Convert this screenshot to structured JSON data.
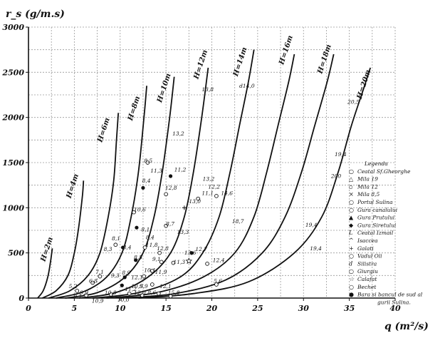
{
  "chart_data": {
    "type": "line",
    "ylabel": "r_s (g/m.s)",
    "xlabel": "q (m²/s)",
    "xlim": [
      0,
      40
    ],
    "ylim": [
      0,
      3000
    ],
    "x_ticks": [
      "0",
      "5",
      "10",
      "15",
      "20",
      "25",
      "30",
      "35",
      "40"
    ],
    "y_ticks": [
      "0",
      "500",
      "1000",
      "1500",
      "2000",
      "2500",
      "3000"
    ],
    "grid": true,
    "series": [
      {
        "name": "H=2m",
        "label_at": [
          1.8,
          400
        ],
        "points": [
          [
            1.0,
            0
          ],
          [
            1.6,
            80
          ],
          [
            2.1,
            230
          ],
          [
            2.4,
            400
          ],
          [
            2.6,
            550
          ]
        ]
      },
      {
        "name": "H=4m",
        "label_at": [
          4.6,
          1100
        ],
        "points": [
          [
            1.5,
            0
          ],
          [
            3.0,
            80
          ],
          [
            4.3,
            250
          ],
          [
            5.0,
            500
          ],
          [
            5.5,
            800
          ],
          [
            5.9,
            1150
          ],
          [
            6.0,
            1300
          ]
        ]
      },
      {
        "name": "H=6m",
        "label_at": [
          8.0,
          1720
        ],
        "points": [
          [
            2.2,
            0
          ],
          [
            4.5,
            80
          ],
          [
            6.5,
            250
          ],
          [
            7.8,
            500
          ],
          [
            8.7,
            900
          ],
          [
            9.3,
            1300
          ],
          [
            9.6,
            1750
          ],
          [
            9.8,
            2050
          ]
        ]
      },
      {
        "name": "H=8m",
        "label_at": [
          11.3,
          1960
        ],
        "points": [
          [
            3.0,
            0
          ],
          [
            6.0,
            70
          ],
          [
            8.5,
            230
          ],
          [
            10.2,
            500
          ],
          [
            11.2,
            900
          ],
          [
            12.0,
            1400
          ],
          [
            12.6,
            2000
          ],
          [
            12.9,
            2350
          ]
        ]
      },
      {
        "name": "H=10m",
        "label_at": [
          14.5,
          2160
        ],
        "points": [
          [
            4.0,
            0
          ],
          [
            7.5,
            60
          ],
          [
            10.5,
            230
          ],
          [
            12.5,
            500
          ],
          [
            13.7,
            900
          ],
          [
            14.6,
            1400
          ],
          [
            15.4,
            2000
          ],
          [
            15.9,
            2450
          ]
        ]
      },
      {
        "name": "H=12m",
        "label_at": [
          18.5,
          2420
        ],
        "points": [
          [
            5.5,
            0
          ],
          [
            9.5,
            60
          ],
          [
            13.0,
            230
          ],
          [
            15.5,
            500
          ],
          [
            17.0,
            900
          ],
          [
            18.0,
            1400
          ],
          [
            18.9,
            2000
          ],
          [
            19.6,
            2550
          ]
        ]
      },
      {
        "name": "H=14m",
        "label_at": [
          22.8,
          2450
        ],
        "points": [
          [
            7.0,
            0
          ],
          [
            12.0,
            60
          ],
          [
            16.5,
            230
          ],
          [
            19.0,
            500
          ],
          [
            20.8,
            900
          ],
          [
            22.0,
            1400
          ],
          [
            23.0,
            1900
          ],
          [
            24.0,
            2400
          ],
          [
            24.6,
            2750
          ]
        ]
      },
      {
        "name": "H=16m",
        "label_at": [
          27.8,
          2580
        ],
        "points": [
          [
            8.5,
            0
          ],
          [
            14.0,
            60
          ],
          [
            19.0,
            230
          ],
          [
            22.5,
            500
          ],
          [
            24.6,
            900
          ],
          [
            26.0,
            1400
          ],
          [
            27.2,
            1900
          ],
          [
            28.4,
            2400
          ],
          [
            29.0,
            2700
          ]
        ]
      },
      {
        "name": "H=18m",
        "label_at": [
          32.0,
          2480
        ],
        "points": [
          [
            10.0,
            0
          ],
          [
            16.0,
            50
          ],
          [
            21.5,
            200
          ],
          [
            25.5,
            500
          ],
          [
            28.0,
            900
          ],
          [
            29.8,
            1400
          ],
          [
            31.2,
            1900
          ],
          [
            32.6,
            2400
          ],
          [
            33.3,
            2700
          ]
        ]
      },
      {
        "name": "H=20m",
        "label_at": [
          36.3,
          2200
        ],
        "points": [
          [
            12.0,
            0
          ],
          [
            18.0,
            50
          ],
          [
            24.0,
            180
          ],
          [
            29.0,
            500
          ],
          [
            32.0,
            900
          ],
          [
            33.8,
            1400
          ],
          [
            35.2,
            1900
          ],
          [
            36.5,
            2300
          ],
          [
            37.3,
            2550
          ]
        ]
      }
    ],
    "annotations": [
      {
        "text": "13,8",
        "at": [
          18.9,
          2290
        ]
      },
      {
        "text": "d14,0",
        "at": [
          23.0,
          2330
        ]
      },
      {
        "text": "20,5",
        "at": [
          34.8,
          2150
        ]
      },
      {
        "text": "13,2",
        "at": [
          15.7,
          1800
        ]
      },
      {
        "text": "8,5",
        "at": [
          12.6,
          1500
        ]
      },
      {
        "text": "11,3",
        "at": [
          13.3,
          1390
        ]
      },
      {
        "text": "11,2",
        "at": [
          15.9,
          1400
        ]
      },
      {
        "text": "8,4",
        "at": [
          12.4,
          1280
        ]
      },
      {
        "text": "12,8",
        "at": [
          14.9,
          1200
        ]
      },
      {
        "text": "13,2",
        "at": [
          19.0,
          1300
        ]
      },
      {
        "text": "12,2",
        "at": [
          19.6,
          1210
        ]
      },
      {
        "text": "14,6",
        "at": [
          21.0,
          1140
        ]
      },
      {
        "text": "11,1",
        "at": [
          18.9,
          1140
        ]
      },
      {
        "text": "13,0",
        "at": [
          17.5,
          1050
        ]
      },
      {
        "text": "10,6",
        "at": [
          11.5,
          960
        ]
      },
      {
        "text": "8,7",
        "at": [
          15.0,
          800
        ]
      },
      {
        "text": "18,7",
        "at": [
          22.2,
          830
        ]
      },
      {
        "text": "19,4",
        "at": [
          30.2,
          790
        ]
      },
      {
        "text": "19,4",
        "at": [
          33.4,
          1570
        ]
      },
      {
        "text": "200",
        "at": [
          33.0,
          1330
        ]
      },
      {
        "text": "19,4",
        "at": [
          30.7,
          530
        ]
      },
      {
        "text": "8,1",
        "at": [
          9.1,
          640
        ]
      },
      {
        "text": "8,1",
        "at": [
          12.3,
          740
        ]
      },
      {
        "text": "8,4",
        "at": [
          12.8,
          650
        ]
      },
      {
        "text": "13,3",
        "at": [
          16.2,
          710
        ]
      },
      {
        "text": "11,8",
        "at": [
          12.8,
          570
        ]
      },
      {
        "text": "8,3",
        "at": [
          8.2,
          520
        ]
      },
      {
        "text": "8,4",
        "at": [
          10.3,
          540
        ]
      },
      {
        "text": "12,8",
        "at": [
          14.0,
          530
        ]
      },
      {
        "text": "12,7",
        "at": [
          18.2,
          520
        ]
      },
      {
        "text": "13,6",
        "at": [
          17.0,
          480
        ]
      },
      {
        "text": "8,5",
        "at": [
          11.5,
          430
        ]
      },
      {
        "text": "12,4",
        "at": [
          20.1,
          400
        ]
      },
      {
        "text": "9,1",
        "at": [
          13.5,
          410
        ]
      },
      {
        "text": "11,3",
        "at": [
          15.8,
          380
        ]
      },
      {
        "text": "10,1",
        "at": [
          12.6,
          290
        ]
      },
      {
        "text": "7,1",
        "at": [
          7.3,
          270
        ]
      },
      {
        "text": "9,3",
        "at": [
          9.0,
          230
        ]
      },
      {
        "text": "8,9",
        "at": [
          10.2,
          260
        ]
      },
      {
        "text": "12,1",
        "at": [
          11.2,
          210
        ]
      },
      {
        "text": "11,9",
        "at": [
          13.8,
          270
        ]
      },
      {
        "text": "6,8",
        "at": [
          6.6,
          170
        ]
      },
      {
        "text": "5,6",
        "at": [
          20.2,
          170
        ]
      },
      {
        "text": "5,2",
        "at": [
          4.4,
          110
        ]
      },
      {
        "text": "11,2",
        "at": [
          10.5,
          80
        ]
      },
      {
        "text": "9,9",
        "at": [
          12.1,
          110
        ]
      },
      {
        "text": "10,5",
        "at": [
          11.2,
          110
        ]
      },
      {
        "text": "12,1",
        "at": [
          14.3,
          110
        ]
      },
      {
        "text": "9,9",
        "at": [
          5.6,
          40
        ]
      },
      {
        "text": "9,1",
        "at": [
          4.9,
          0
        ]
      },
      {
        "text": "10,9",
        "at": [
          6.9,
          -50
        ]
      },
      {
        "text": "10,8",
        "at": [
          8.3,
          40
        ]
      },
      {
        "text": "10,0",
        "at": [
          9.7,
          -40
        ]
      },
      {
        "text": "12,0",
        "at": [
          11.5,
          40
        ]
      },
      {
        "text": "8,6",
        "at": [
          13.0,
          40
        ]
      },
      {
        "text": "15,8",
        "at": [
          15.2,
          40
        ]
      }
    ],
    "points": [
      {
        "x": 15.5,
        "y": 1350,
        "marker": "filled"
      },
      {
        "x": 12.5,
        "y": 1220,
        "marker": "filled"
      },
      {
        "x": 13.0,
        "y": 1500,
        "marker": "open"
      },
      {
        "x": 15.0,
        "y": 1150,
        "marker": "open"
      },
      {
        "x": 11.5,
        "y": 950,
        "marker": "open"
      },
      {
        "x": 17.0,
        "y": 1000,
        "marker": "plus"
      },
      {
        "x": 18.5,
        "y": 1100,
        "marker": "open"
      },
      {
        "x": 20.5,
        "y": 1130,
        "marker": "open"
      },
      {
        "x": 11.8,
        "y": 780,
        "marker": "filled"
      },
      {
        "x": 15.0,
        "y": 800,
        "marker": "open"
      },
      {
        "x": 9.5,
        "y": 590,
        "marker": "open"
      },
      {
        "x": 10.3,
        "y": 560,
        "marker": "filled"
      },
      {
        "x": 12.7,
        "y": 560,
        "marker": "open"
      },
      {
        "x": 14.3,
        "y": 500,
        "marker": "open"
      },
      {
        "x": 17.8,
        "y": 500,
        "marker": "filled"
      },
      {
        "x": 14.5,
        "y": 400,
        "marker": "open"
      },
      {
        "x": 11.7,
        "y": 420,
        "marker": "filled"
      },
      {
        "x": 15.8,
        "y": 390,
        "marker": "open"
      },
      {
        "x": 17.5,
        "y": 410,
        "marker": "star"
      },
      {
        "x": 19.5,
        "y": 380,
        "marker": "open"
      },
      {
        "x": 13.5,
        "y": 300,
        "marker": "open"
      },
      {
        "x": 7.8,
        "y": 240,
        "marker": "open"
      },
      {
        "x": 10.5,
        "y": 230,
        "marker": "filled"
      },
      {
        "x": 12.6,
        "y": 240,
        "marker": "open"
      },
      {
        "x": 7.0,
        "y": 170,
        "marker": "open"
      },
      {
        "x": 10.2,
        "y": 140,
        "marker": "filled"
      },
      {
        "x": 13.5,
        "y": 150,
        "marker": "open"
      },
      {
        "x": 20.5,
        "y": 150,
        "marker": "open"
      },
      {
        "x": 5.3,
        "y": 80,
        "marker": "open"
      },
      {
        "x": 6.3,
        "y": 30,
        "marker": "open"
      },
      {
        "x": 9.0,
        "y": 40,
        "marker": "open"
      },
      {
        "x": 11.0,
        "y": 50,
        "marker": "open"
      },
      {
        "x": 12.4,
        "y": 30,
        "marker": "open"
      },
      {
        "x": 14.2,
        "y": 50,
        "marker": "open"
      },
      {
        "x": 15.5,
        "y": 20,
        "marker": "open"
      }
    ],
    "legend": {
      "title": "Legenda",
      "items": [
        {
          "symbol": "○",
          "label": "Ceatal Sf.Gheorghe"
        },
        {
          "symbol": "△",
          "label": "Mila 19"
        },
        {
          "symbol": "▫",
          "label": "Mila 12"
        },
        {
          "symbol": "×",
          "label": "Mila 8,5"
        },
        {
          "symbol": "○",
          "label": "Portul Sulina"
        },
        {
          "symbol": "○",
          "label": "Gura canalului"
        },
        {
          "symbol": "▲",
          "label": "Gura Prutului"
        },
        {
          "symbol": "◆",
          "label": "Gura Siretului"
        },
        {
          "symbol": "L",
          "label": "Ceatal Izmail"
        },
        {
          "symbol": "^",
          "label": "Isaccea"
        },
        {
          "symbol": "+",
          "label": "Galati"
        },
        {
          "symbol": "○",
          "label": "Vadul Oii"
        },
        {
          "symbol": "d",
          "label": "Silistra"
        },
        {
          "symbol": "○",
          "label": "Giurgiu"
        },
        {
          "symbol": "☆",
          "label": "Calafat"
        },
        {
          "symbol": "○",
          "label": "Bechet"
        },
        {
          "symbol": "●",
          "label": "Bara si bancul de sud al"
        },
        {
          "symbol": "",
          "label": "gurii Sulina."
        }
      ]
    }
  }
}
